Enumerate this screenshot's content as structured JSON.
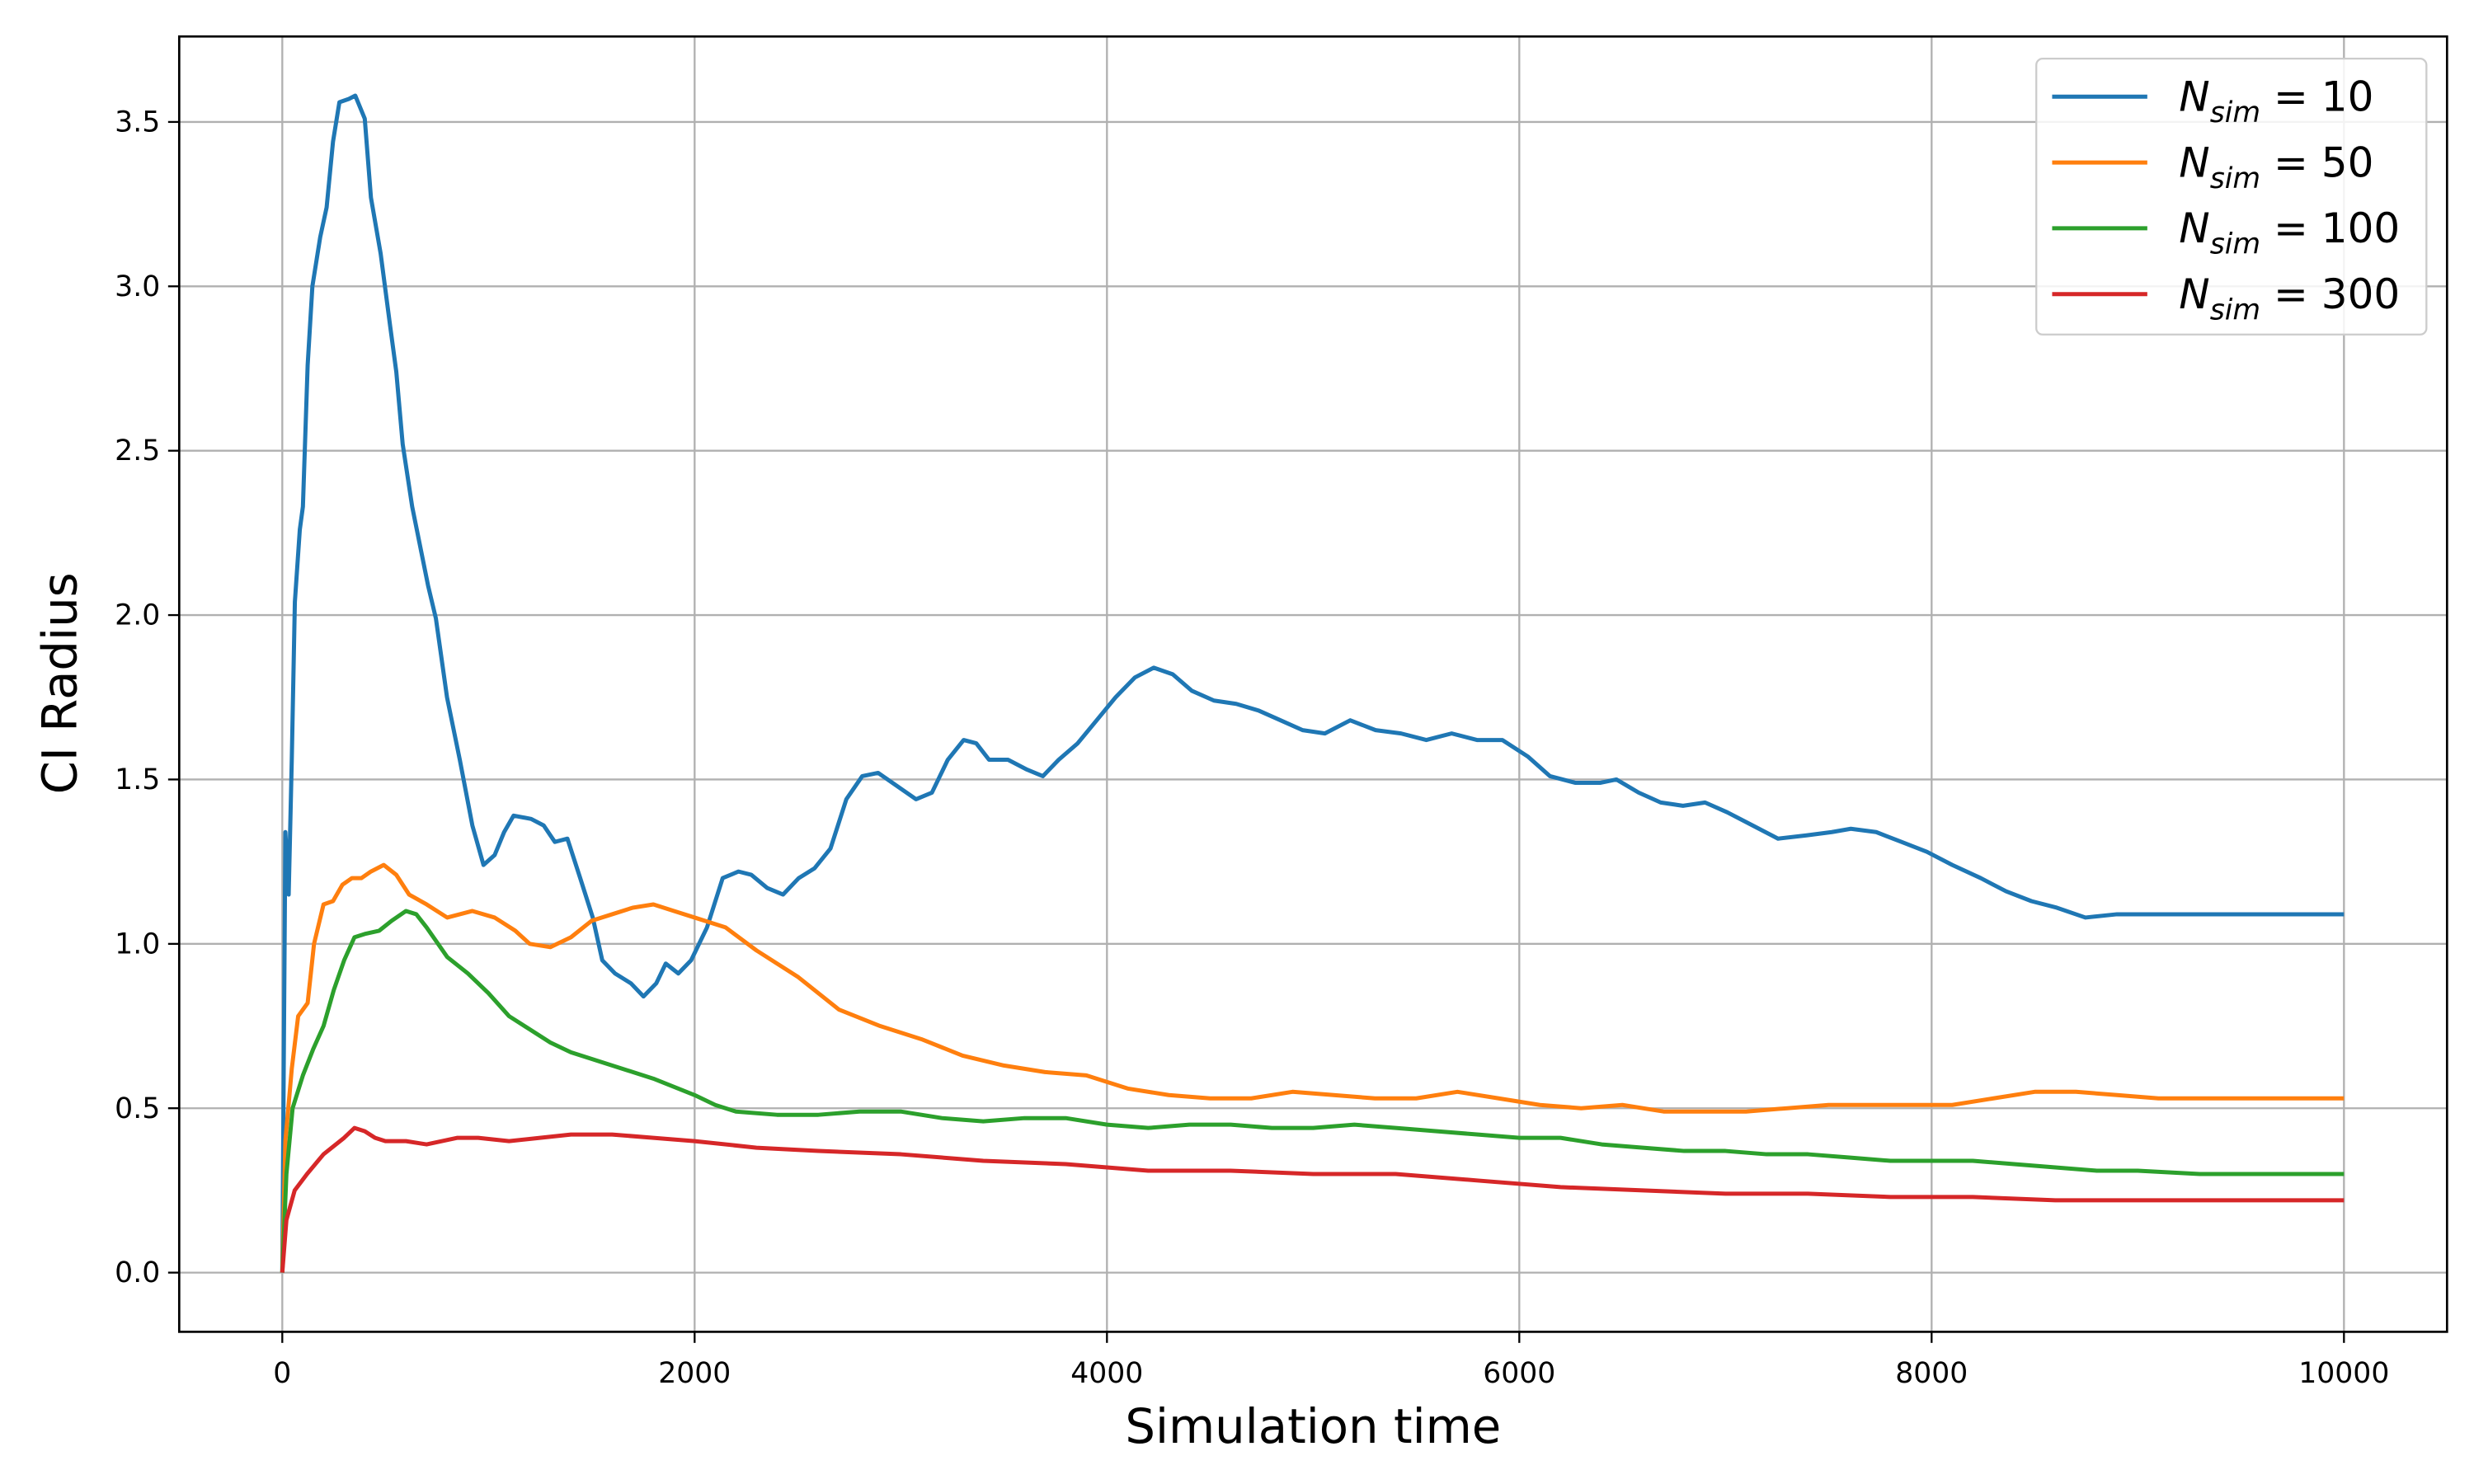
{
  "chart_data": {
    "type": "line",
    "xlabel": "Simulation time",
    "ylabel": "CI Radius",
    "xlim": [
      -500,
      10500
    ],
    "ylim": [
      -0.18,
      3.76
    ],
    "xticks": [
      0,
      2000,
      4000,
      6000,
      8000,
      10000
    ],
    "yticks": [
      {
        "value": 0.0,
        "label": "0.0"
      },
      0.5,
      {
        "value": 1.0,
        "label": "1.0"
      },
      1.5,
      {
        "value": 2.0,
        "label": "2.0"
      },
      2.5,
      {
        "value": 3.0,
        "label": "3.0"
      },
      3.5
    ],
    "grid": true,
    "legend": "upper right",
    "series": [
      {
        "name": "N_sim = 10",
        "color": "#1f77b4",
        "x": [
          0,
          15,
          31,
          46,
          61,
          85,
          100,
          123,
          146,
          184,
          215,
          246,
          277,
          323,
          354,
          400,
          430,
          477,
          523,
          553,
          584,
          630,
          707,
          745,
          799,
          861,
          922,
          976,
          1030,
          1076,
          1122,
          1207,
          1268,
          1322,
          1383,
          1445,
          1506,
          1552,
          1614,
          1691,
          1752,
          1814,
          1860,
          1921,
          1983,
          2060,
          2136,
          2213,
          2275,
          2352,
          2429,
          2505,
          2582,
          2659,
          2736,
          2813,
          2890,
          2982,
          3074,
          3151,
          3228,
          3305,
          3366,
          3428,
          3520,
          3612,
          3689,
          3766,
          3858,
          3950,
          4042,
          4135,
          4227,
          4319,
          4411,
          4519,
          4627,
          4734,
          4842,
          4949,
          5057,
          5180,
          5303,
          5426,
          5549,
          5672,
          5795,
          5918,
          6041,
          6149,
          6271,
          6394,
          6471,
          6579,
          6686,
          6794,
          6901,
          7009,
          7132,
          7255,
          7393,
          7516,
          7608,
          7731,
          7854,
          7977,
          8100,
          8238,
          8361,
          8484,
          8607,
          8746,
          8899,
          9084,
          10000
        ],
        "values": [
          0,
          1.34,
          1.15,
          1.56,
          2.04,
          2.26,
          2.33,
          2.76,
          3.0,
          3.15,
          3.24,
          3.44,
          3.56,
          3.57,
          3.58,
          3.51,
          3.27,
          3.1,
          2.88,
          2.74,
          2.52,
          2.33,
          2.09,
          1.99,
          1.75,
          1.56,
          1.36,
          1.24,
          1.27,
          1.34,
          1.39,
          1.38,
          1.36,
          1.31,
          1.32,
          1.2,
          1.08,
          0.95,
          0.91,
          0.88,
          0.84,
          0.88,
          0.94,
          0.91,
          0.95,
          1.05,
          1.2,
          1.22,
          1.21,
          1.17,
          1.15,
          1.2,
          1.23,
          1.29,
          1.44,
          1.51,
          1.52,
          1.48,
          1.44,
          1.46,
          1.56,
          1.62,
          1.61,
          1.56,
          1.56,
          1.53,
          1.51,
          1.56,
          1.61,
          1.68,
          1.75,
          1.81,
          1.84,
          1.82,
          1.77,
          1.74,
          1.73,
          1.71,
          1.68,
          1.65,
          1.64,
          1.68,
          1.65,
          1.64,
          1.62,
          1.64,
          1.62,
          1.62,
          1.57,
          1.51,
          1.49,
          1.49,
          1.5,
          1.46,
          1.43,
          1.42,
          1.43,
          1.4,
          1.36,
          1.32,
          1.33,
          1.34,
          1.35,
          1.34,
          1.31,
          1.28,
          1.24,
          1.2,
          1.16,
          1.13,
          1.11,
          1.08,
          1.09,
          1.09,
          1.09
        ]
      },
      {
        "name": "N_sim = 50",
        "color": "#ff7f0e",
        "x": [
          0,
          15,
          46,
          77,
          123,
          154,
          200,
          246,
          292,
          338,
          384,
          430,
          492,
          553,
          615,
          700,
          800,
          922,
          1030,
          1130,
          1200,
          1300,
          1400,
          1500,
          1600,
          1700,
          1800,
          1900,
          2000,
          2150,
          2300,
          2500,
          2700,
          2900,
          3100,
          3300,
          3500,
          3700,
          3900,
          4100,
          4300,
          4500,
          4700,
          4900,
          5100,
          5300,
          5500,
          5700,
          5900,
          6100,
          6300,
          6500,
          6700,
          6900,
          7100,
          7300,
          7500,
          7700,
          7900,
          8100,
          8300,
          8500,
          8700,
          8900,
          9100,
          9500,
          10000
        ],
        "values": [
          0,
          0.4,
          0.62,
          0.78,
          0.82,
          1.0,
          1.12,
          1.13,
          1.18,
          1.2,
          1.2,
          1.22,
          1.24,
          1.21,
          1.15,
          1.12,
          1.08,
          1.1,
          1.08,
          1.04,
          1.0,
          0.99,
          1.02,
          1.07,
          1.09,
          1.11,
          1.12,
          1.1,
          1.08,
          1.05,
          0.98,
          0.9,
          0.8,
          0.75,
          0.71,
          0.66,
          0.63,
          0.61,
          0.6,
          0.56,
          0.54,
          0.53,
          0.53,
          0.55,
          0.54,
          0.53,
          0.53,
          0.55,
          0.53,
          0.51,
          0.5,
          0.51,
          0.49,
          0.49,
          0.49,
          0.5,
          0.51,
          0.51,
          0.51,
          0.51,
          0.53,
          0.55,
          0.55,
          0.54,
          0.53,
          0.53,
          0.53
        ]
      },
      {
        "name": "N_sim = 100",
        "color": "#2ca02c",
        "x": [
          0,
          20,
          50,
          100,
          150,
          200,
          250,
          300,
          350,
          400,
          470,
          530,
          600,
          650,
          700,
          800,
          900,
          1000,
          1100,
          1200,
          1300,
          1400,
          1600,
          1800,
          2000,
          2100,
          2200,
          2400,
          2600,
          2800,
          3000,
          3200,
          3400,
          3600,
          3800,
          4000,
          4200,
          4400,
          4600,
          4800,
          5000,
          5200,
          5400,
          5600,
          5800,
          6000,
          6200,
          6400,
          6600,
          6800,
          7000,
          7200,
          7400,
          7600,
          7800,
          8000,
          8200,
          8400,
          8600,
          8800,
          9000,
          9300,
          10000
        ],
        "values": [
          0,
          0.3,
          0.5,
          0.6,
          0.68,
          0.75,
          0.86,
          0.95,
          1.02,
          1.03,
          1.04,
          1.07,
          1.1,
          1.09,
          1.05,
          0.96,
          0.91,
          0.85,
          0.78,
          0.74,
          0.7,
          0.67,
          0.63,
          0.59,
          0.54,
          0.51,
          0.49,
          0.48,
          0.48,
          0.49,
          0.49,
          0.47,
          0.46,
          0.47,
          0.47,
          0.45,
          0.44,
          0.45,
          0.45,
          0.44,
          0.44,
          0.45,
          0.44,
          0.43,
          0.42,
          0.41,
          0.41,
          0.39,
          0.38,
          0.37,
          0.37,
          0.36,
          0.36,
          0.35,
          0.34,
          0.34,
          0.34,
          0.33,
          0.32,
          0.31,
          0.31,
          0.3,
          0.3
        ]
      },
      {
        "name": "N_sim = 300",
        "color": "#d62728",
        "x": [
          0,
          20,
          60,
          120,
          200,
          300,
          350,
          400,
          450,
          500,
          600,
          700,
          850,
          950,
          1100,
          1250,
          1400,
          1600,
          1800,
          2000,
          2300,
          2600,
          3000,
          3400,
          3800,
          4200,
          4600,
          5000,
          5400,
          5800,
          6200,
          6600,
          7000,
          7400,
          7800,
          8200,
          8600,
          9000,
          10000
        ],
        "values": [
          0,
          0.16,
          0.25,
          0.3,
          0.36,
          0.41,
          0.44,
          0.43,
          0.41,
          0.4,
          0.4,
          0.39,
          0.41,
          0.41,
          0.4,
          0.41,
          0.42,
          0.42,
          0.41,
          0.4,
          0.38,
          0.37,
          0.36,
          0.34,
          0.33,
          0.31,
          0.31,
          0.3,
          0.3,
          0.28,
          0.26,
          0.25,
          0.24,
          0.24,
          0.23,
          0.23,
          0.22,
          0.22,
          0.22
        ]
      }
    ]
  }
}
